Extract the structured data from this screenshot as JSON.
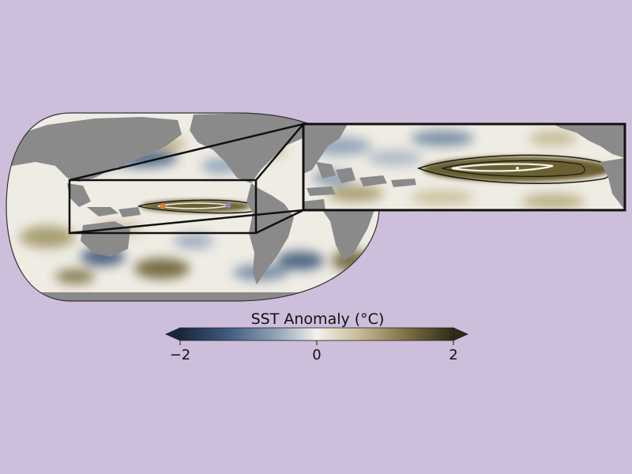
{
  "figure": {
    "background_color": "#cdbedb",
    "land_color": "#8a8a8a",
    "ocean_base_color": "#efece4",
    "anomaly_contour_color": "#1c1a12",
    "inner_contour_color": "#f4f1e6",
    "marker_colors": [
      "#e07a2e",
      "#8a86b6"
    ]
  },
  "colorbar": {
    "title": "SST Anomaly (°C)",
    "min": -2,
    "max": 2,
    "tick_labels": [
      "−2",
      "0",
      "2"
    ],
    "tick_values": [
      -2,
      0,
      2
    ],
    "extend": "both",
    "colormap": [
      "#19263e",
      "#3c5a7c",
      "#8ea3b8",
      "#f4f1ea",
      "#c9bd97",
      "#7b6f43",
      "#2f2a14"
    ]
  }
}
